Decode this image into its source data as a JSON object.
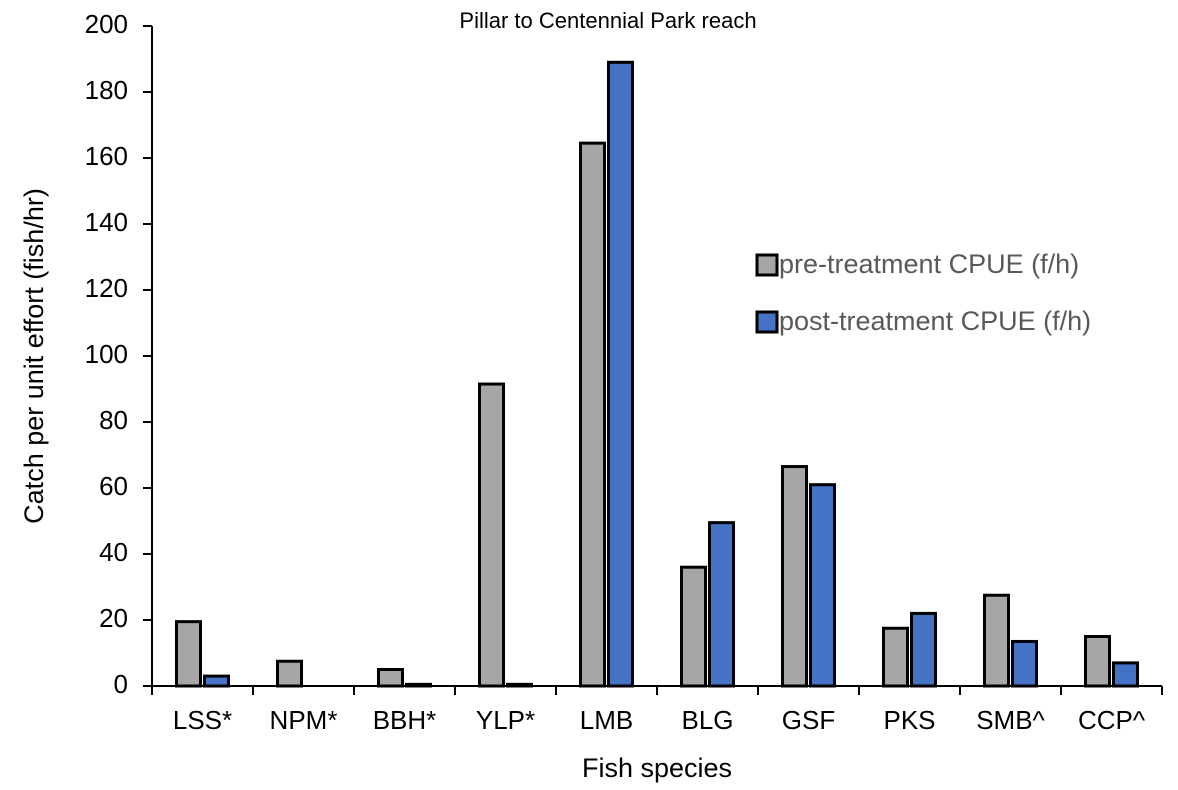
{
  "chart_data": {
    "type": "bar",
    "title": "Pillar to Centennial Park reach",
    "x_label": "Fish species",
    "y_label": "Catch per unit effort (fish/hr)",
    "categories": [
      "LSS*",
      "NPM*",
      "BBH*",
      "YLP*",
      "LMB",
      "BLG",
      "GSF",
      "PKS",
      "SMB^",
      "CCP^"
    ],
    "series": [
      {
        "name": "pre-treatment CPUE (f/h)",
        "color": "#a6a6a6",
        "values": [
          19.5,
          7.5,
          5,
          91.5,
          164.5,
          36,
          66.5,
          17.5,
          27.5,
          15
        ]
      },
      {
        "name": "post-treatment CPUE (f/h)",
        "color": "#4472c4",
        "values": [
          3,
          0,
          0.5,
          0.5,
          189,
          49.5,
          61,
          22,
          13.5,
          7
        ]
      }
    ],
    "ylim": [
      0,
      200
    ],
    "yticks": [
      0,
      20,
      40,
      60,
      80,
      100,
      120,
      140,
      160,
      180,
      200
    ],
    "grid": false,
    "legend": "right"
  }
}
